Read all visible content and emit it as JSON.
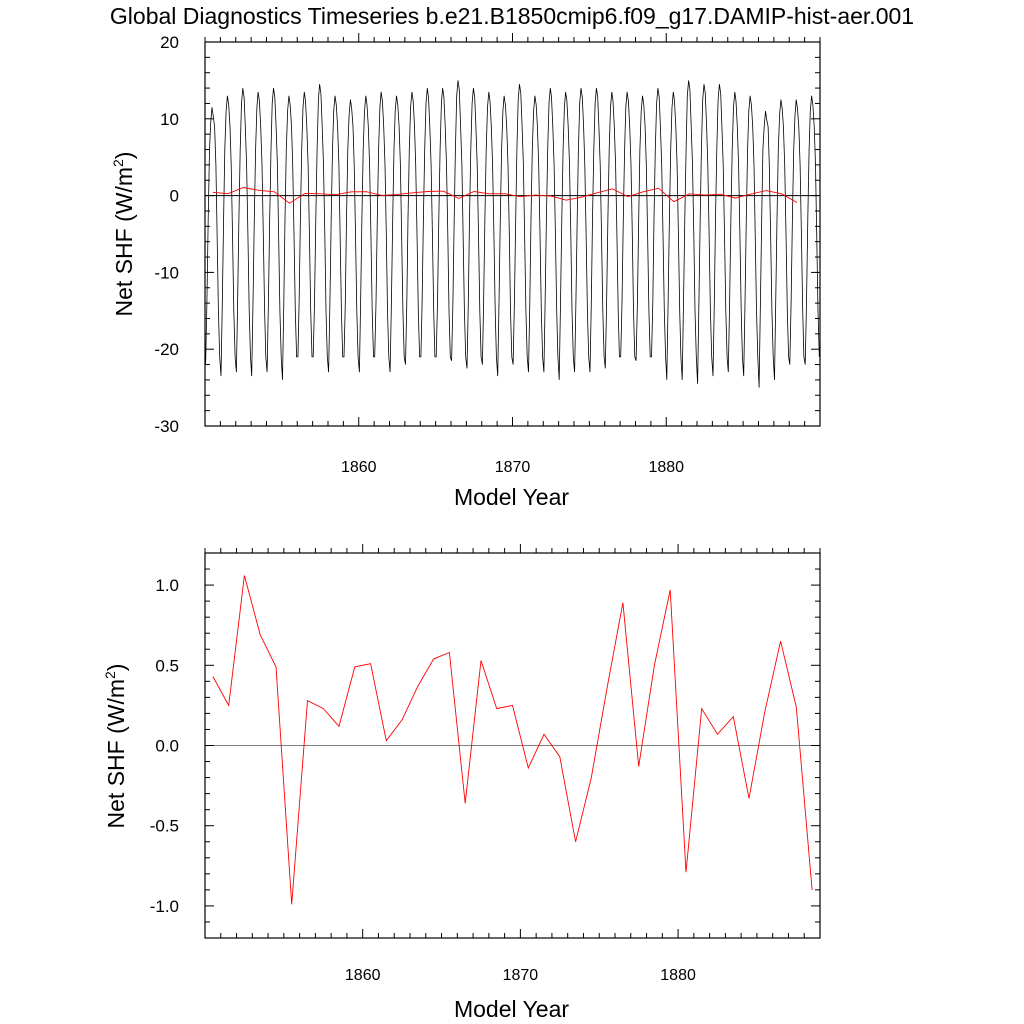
{
  "figure": {
    "title": "Global Diagnostics Timeseries b.e21.B1850cmip6.f09_g17.DAMIP-hist-aer.001"
  },
  "chart_data": [
    {
      "type": "line",
      "xlabel": "Model Year",
      "ylabel_main": "Net SHF (W/m",
      "ylabel_sup": "2",
      "ylabel_close": ")",
      "xlim": [
        1850,
        1890
      ],
      "ylim": [
        -30,
        20
      ],
      "x_major_ticks": [
        1860,
        1870,
        1880
      ],
      "x_tick_labels": [
        "1860",
        "1870",
        "1880"
      ],
      "y_major_ticks": [
        -30,
        -20,
        -10,
        0,
        10,
        20
      ],
      "y_tick_labels": [
        "-30",
        "-20",
        "-10",
        "0",
        "10",
        "20"
      ],
      "reference_line": 0,
      "colors": {
        "monthly": "#000000",
        "annual": "#ff0000",
        "reference": "#000000"
      },
      "series": [
        {
          "kind": "monthly",
          "x_start": 1850.04,
          "x_step": 0.08333,
          "seasonal_cycle": [
            -22,
            -14,
            -3,
            6,
            10,
            12,
            11,
            9,
            4,
            -5,
            -15,
            -21
          ],
          "winter_minima": [
            -22,
            -23.5,
            -23,
            -23.5,
            -23,
            -24,
            -21,
            -21,
            -23,
            -21,
            -23,
            -21,
            -23,
            -22,
            -21,
            -21,
            -21.5,
            -22.5,
            -22,
            -23.5,
            -22,
            -23,
            -23,
            -24,
            -23,
            -23,
            -22.5,
            -21,
            -21.5,
            -21,
            -24,
            -24,
            -24.5,
            -23.5,
            -23,
            -23.5,
            -25,
            -24,
            -22,
            -22
          ],
          "summer_maxima": [
            11.5,
            13,
            14,
            13.5,
            14,
            13,
            13.5,
            14.5,
            13,
            12.5,
            13,
            13.5,
            13,
            13.5,
            14,
            14,
            15,
            14,
            13.5,
            13,
            14.5,
            13,
            14,
            13.5,
            14,
            14,
            13.5,
            13.5,
            13,
            14,
            13.5,
            15,
            14.5,
            14.5,
            13.5,
            13,
            11,
            12.5,
            12.5,
            13
          ]
        },
        {
          "kind": "annual",
          "x": [
            1850.5,
            1851.5,
            1852.5,
            1853.5,
            1854.5,
            1855.5,
            1856.5,
            1857.5,
            1858.5,
            1859.5,
            1860.5,
            1861.5,
            1862.5,
            1863.5,
            1864.5,
            1865.5,
            1866.5,
            1867.5,
            1868.5,
            1869.5,
            1870.5,
            1871.5,
            1872.5,
            1873.5,
            1874.5,
            1875.5,
            1876.5,
            1877.5,
            1878.5,
            1879.5,
            1880.5,
            1881.5,
            1882.5,
            1883.5,
            1884.5,
            1885.5,
            1886.5,
            1887.5,
            1888.5
          ],
          "y": [
            0.43,
            0.25,
            1.06,
            0.69,
            0.49,
            -0.99,
            0.28,
            0.23,
            0.12,
            0.49,
            0.51,
            0.03,
            0.16,
            0.37,
            0.54,
            0.58,
            -0.36,
            0.53,
            0.23,
            0.25,
            -0.14,
            0.07,
            -0.07,
            -0.6,
            -0.2,
            0.36,
            0.89,
            -0.13,
            0.5,
            0.97,
            -0.79,
            0.23,
            0.07,
            0.18,
            -0.33,
            0.21,
            0.65,
            0.24,
            -0.9
          ]
        }
      ]
    },
    {
      "type": "line",
      "xlabel": "Model Year",
      "ylabel_main": "Net SHF (W/m",
      "ylabel_sup": "2",
      "ylabel_close": ")",
      "xlim": [
        1850,
        1889
      ],
      "ylim": [
        -1.2,
        1.2
      ],
      "x_major_ticks": [
        1860,
        1870,
        1880
      ],
      "x_tick_labels": [
        "1860",
        "1870",
        "1880"
      ],
      "y_major_ticks": [
        -1.0,
        -0.5,
        0.0,
        0.5,
        1.0
      ],
      "y_tick_labels": [
        "-1.0",
        "-0.5",
        "0.0",
        "0.5",
        "1.0"
      ],
      "reference_line": 0,
      "colors": {
        "annual": "#ff0000",
        "reference": "#808080"
      },
      "series": [
        {
          "kind": "annual",
          "x": [
            1850.5,
            1851.5,
            1852.5,
            1853.5,
            1854.5,
            1855.5,
            1856.5,
            1857.5,
            1858.5,
            1859.5,
            1860.5,
            1861.5,
            1862.5,
            1863.5,
            1864.5,
            1865.5,
            1866.5,
            1867.5,
            1868.5,
            1869.5,
            1870.5,
            1871.5,
            1872.5,
            1873.5,
            1874.5,
            1875.5,
            1876.5,
            1877.5,
            1878.5,
            1879.5,
            1880.5,
            1881.5,
            1882.5,
            1883.5,
            1884.5,
            1885.5,
            1886.5,
            1887.5,
            1888.5
          ],
          "y": [
            0.43,
            0.25,
            1.06,
            0.69,
            0.49,
            -0.99,
            0.28,
            0.23,
            0.12,
            0.49,
            0.51,
            0.03,
            0.16,
            0.37,
            0.54,
            0.58,
            -0.36,
            0.53,
            0.23,
            0.25,
            -0.14,
            0.07,
            -0.07,
            -0.6,
            -0.2,
            0.36,
            0.89,
            -0.13,
            0.5,
            0.97,
            -0.79,
            0.23,
            0.07,
            0.18,
            -0.33,
            0.21,
            0.65,
            0.24,
            -0.9
          ]
        }
      ]
    }
  ]
}
